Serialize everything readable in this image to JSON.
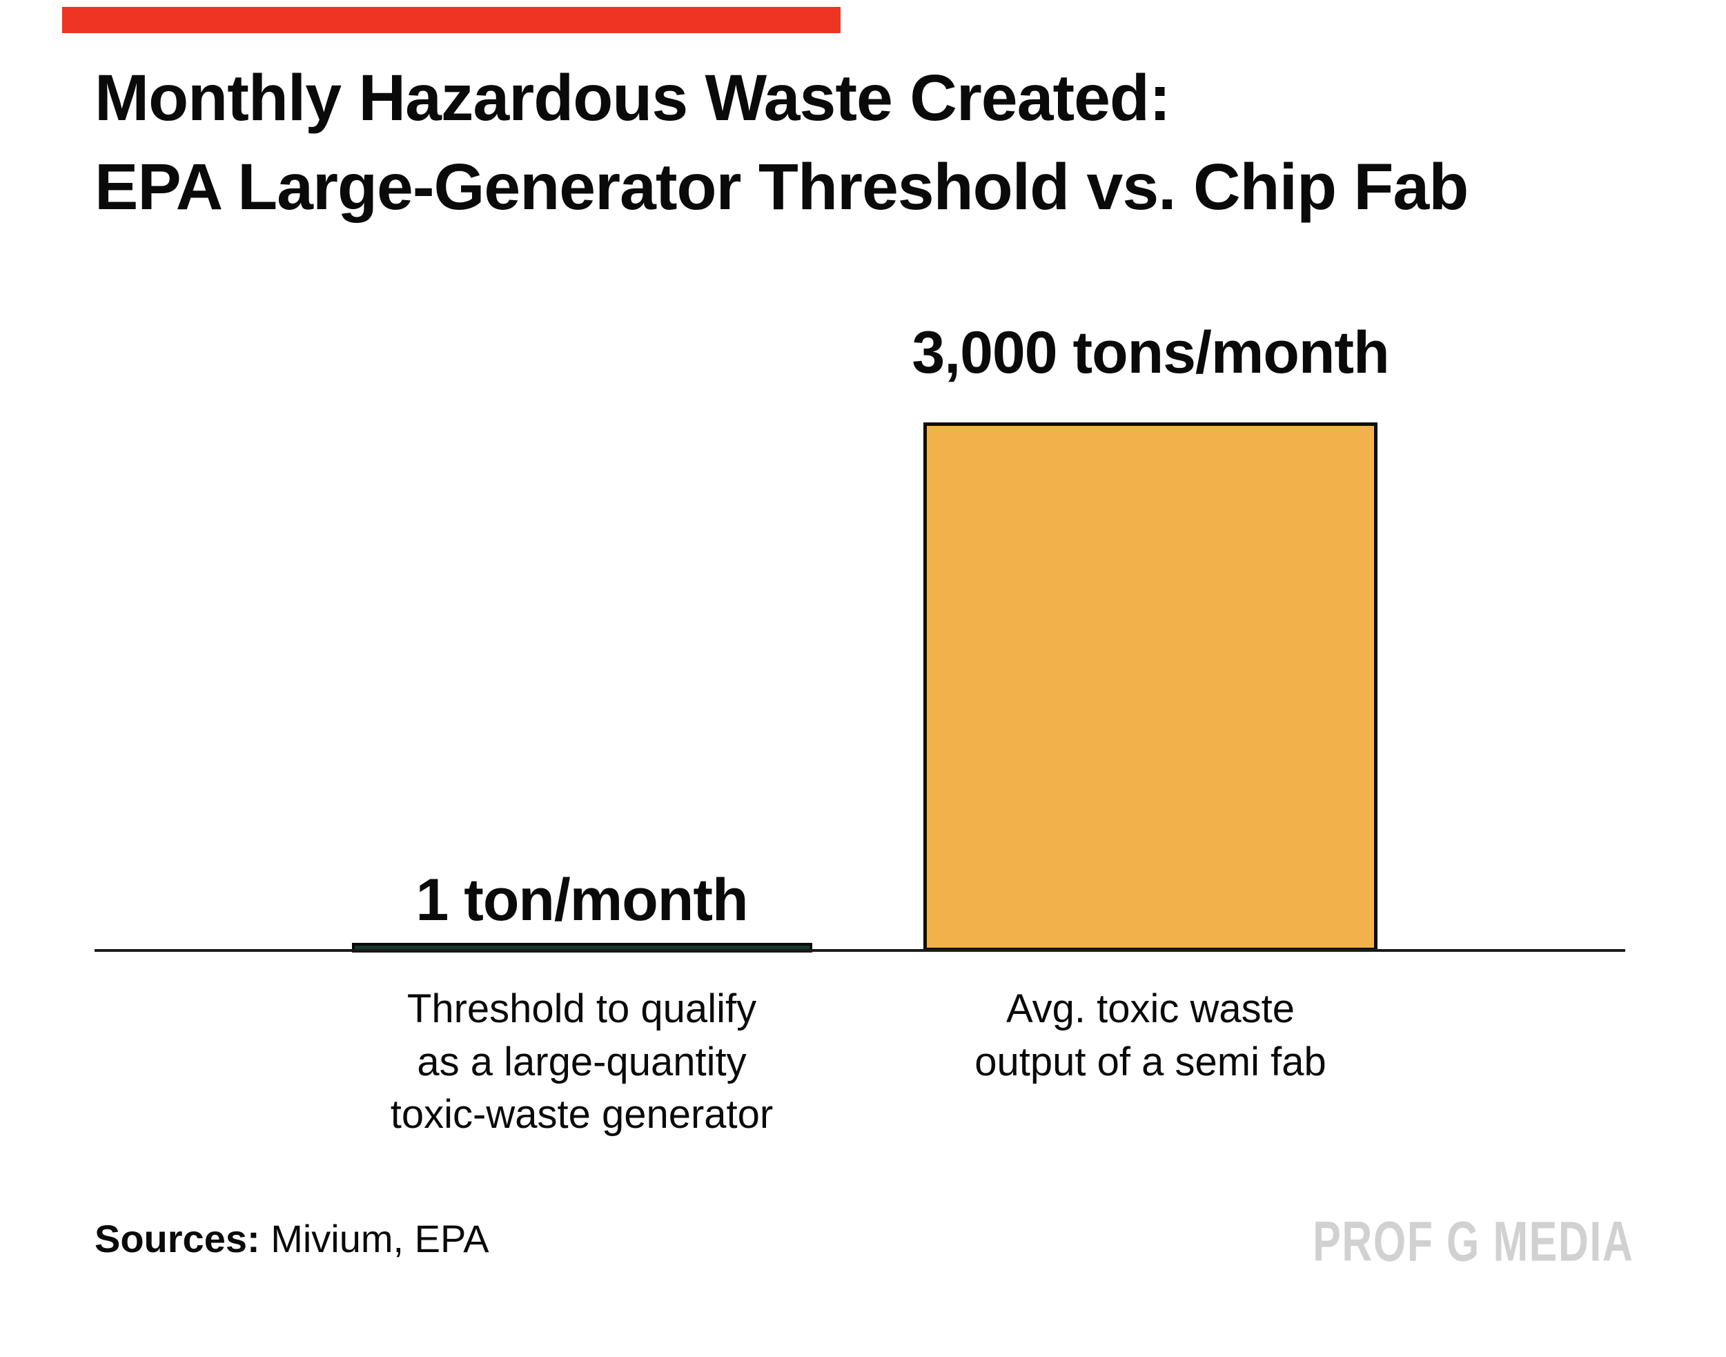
{
  "brand": {
    "accent_color": "#ee3524",
    "watermark": "PROF G MEDIA",
    "watermark_color": "#d1d1d1"
  },
  "header": {
    "title_line1": "Monthly Hazardous Waste Created:",
    "title_line2": "EPA Large-Generator Threshold vs. Chip Fab",
    "title_full": "Monthly Hazardous Waste Created:\nEPA Large-Generator Threshold vs. Chip Fab"
  },
  "footer": {
    "sources_label": "Sources:",
    "sources_value": " Mivium, EPA"
  },
  "chart_data": {
    "type": "bar",
    "title": "Monthly Hazardous Waste Created: EPA Large-Generator Threshold vs. Chip Fab",
    "unit": "tons/month",
    "categories": [
      "Threshold to qualify as a large-quantity toxic-waste generator",
      "Avg. toxic waste output of a semi fab"
    ],
    "values": [
      1,
      3000
    ],
    "value_labels": [
      "1 ton/month",
      "3,000 tons/month"
    ],
    "bar_colors": [
      "#16382a",
      "#f2b14b"
    ],
    "bar_border_color": "#0d0d0d",
    "axis_color": "#1b1b1b",
    "ylim": [
      0,
      3000
    ],
    "grid": false,
    "legend_position": "none",
    "captions": {
      "left": "Threshold to qualify\nas a large-quantity\ntoxic-waste generator",
      "right": "Avg. toxic waste\noutput of a semi fab"
    }
  }
}
